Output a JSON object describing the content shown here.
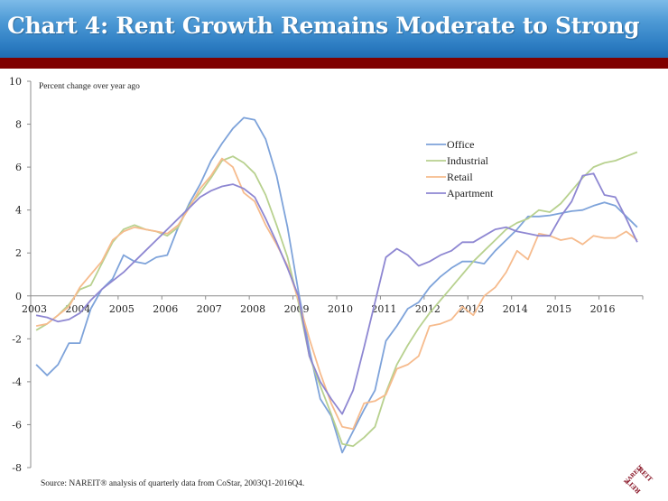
{
  "header": {
    "title": "Chart 4: Rent Growth Remains Moderate to Strong"
  },
  "source_note": "Source: NAREIT® analysis of quarterly data from CoStar, 2003Q1-2016Q4.",
  "logo": {
    "text_top": "REIT",
    "text_side": "NAREIT"
  },
  "colors": {
    "header_rule": "#7f0000",
    "office": "#7ea3da",
    "industrial": "#b8d18f",
    "retail": "#f6bb8d",
    "apartment": "#8e87d2"
  },
  "chart_data": {
    "type": "line",
    "title": "Chart 4: Rent Growth Remains Moderate to Strong",
    "ylabel": "Percent change over year ago",
    "xlabel": "",
    "ylim": [
      -8,
      10
    ],
    "yticks": [
      "10",
      "8",
      "6",
      "4",
      "2",
      "0",
      "-2",
      "-4",
      "-6",
      "-8"
    ],
    "ytick_values": [
      10,
      8,
      6,
      4,
      2,
      0,
      -2,
      -4,
      -6,
      -8
    ],
    "xlim": [
      2003,
      2017
    ],
    "xticks": [
      "2003",
      "2004",
      "2005",
      "2006",
      "2007",
      "2008",
      "2009",
      "2010",
      "2011",
      "2012",
      "2013",
      "2014",
      "2015",
      "2016"
    ],
    "xtick_values": [
      2003,
      2004,
      2005,
      2006,
      2007,
      2008,
      2009,
      2010,
      2011,
      2012,
      2013,
      2014,
      2015,
      2016
    ],
    "x_frequency": "quarterly",
    "x_start": "2003Q1",
    "x_end": "2016Q4",
    "grid": false,
    "legend_position": "upper-right",
    "series": [
      {
        "name": "Office",
        "color": "#7ea3da",
        "values": [
          -3.2,
          -3.7,
          -3.2,
          -2.2,
          -2.2,
          -0.6,
          0.3,
          0.8,
          1.9,
          1.6,
          1.5,
          1.8,
          1.9,
          3.2,
          4.3,
          5.2,
          6.3,
          7.1,
          7.8,
          8.3,
          8.2,
          7.3,
          5.6,
          3.2,
          0.2,
          -2.5,
          -4.8,
          -5.6,
          -7.3,
          -6.3,
          -5.3,
          -4.4,
          -2.1,
          -1.4,
          -0.6,
          -0.3,
          0.4,
          0.9,
          1.3,
          1.6,
          1.6,
          1.5,
          2.1,
          2.6,
          3.1,
          3.7,
          3.7,
          3.75,
          3.85,
          3.95,
          4.0,
          4.2,
          4.35,
          4.2,
          3.7,
          3.2
        ]
      },
      {
        "name": "Industrial",
        "color": "#b8d18f",
        "values": [
          -1.6,
          -1.3,
          -0.9,
          -0.4,
          0.3,
          0.5,
          1.5,
          2.5,
          3.1,
          3.3,
          3.1,
          3.0,
          2.8,
          3.2,
          4.2,
          4.8,
          5.5,
          6.3,
          6.5,
          6.2,
          5.7,
          4.7,
          3.3,
          1.8,
          -0.3,
          -2.8,
          -4.2,
          -5.5,
          -6.9,
          -7.0,
          -6.6,
          -6.1,
          -4.5,
          -3.2,
          -2.3,
          -1.5,
          -0.8,
          -0.2,
          0.4,
          1.0,
          1.6,
          2.1,
          2.6,
          3.1,
          3.4,
          3.6,
          4.0,
          3.9,
          4.3,
          4.9,
          5.5,
          6.0,
          6.2,
          6.3,
          6.5,
          6.7
        ]
      },
      {
        "name": "Retail",
        "color": "#f6bb8d",
        "values": [
          -1.4,
          -1.3,
          -0.9,
          -0.5,
          0.4,
          1.0,
          1.6,
          2.6,
          3.0,
          3.2,
          3.1,
          3.0,
          2.9,
          3.3,
          4.1,
          5.0,
          5.6,
          6.4,
          6.0,
          4.8,
          4.4,
          3.3,
          2.4,
          1.4,
          -0.2,
          -2.0,
          -3.6,
          -5.0,
          -6.1,
          -6.2,
          -5.0,
          -4.9,
          -4.6,
          -3.4,
          -3.2,
          -2.8,
          -1.4,
          -1.3,
          -1.1,
          -0.5,
          -0.9,
          0.0,
          0.4,
          1.1,
          2.1,
          1.7,
          2.9,
          2.8,
          2.6,
          2.7,
          2.4,
          2.8,
          2.7,
          2.7,
          3.0,
          2.6
        ]
      },
      {
        "name": "Apartment",
        "color": "#8e87d2",
        "values": [
          -0.9,
          -1.0,
          -1.2,
          -1.1,
          -0.8,
          -0.2,
          0.3,
          0.7,
          1.1,
          1.6,
          2.1,
          2.6,
          3.1,
          3.6,
          4.1,
          4.6,
          4.9,
          5.1,
          5.2,
          5.0,
          4.6,
          3.6,
          2.5,
          1.3,
          0.0,
          -2.8,
          -4.0,
          -4.8,
          -5.5,
          -4.4,
          -2.4,
          -0.3,
          1.8,
          2.2,
          1.9,
          1.4,
          1.6,
          1.9,
          2.1,
          2.5,
          2.5,
          2.8,
          3.1,
          3.2,
          3.0,
          2.9,
          2.8,
          2.8,
          3.7,
          4.4,
          5.6,
          5.7,
          4.7,
          4.6,
          3.6,
          2.5
        ]
      }
    ]
  }
}
